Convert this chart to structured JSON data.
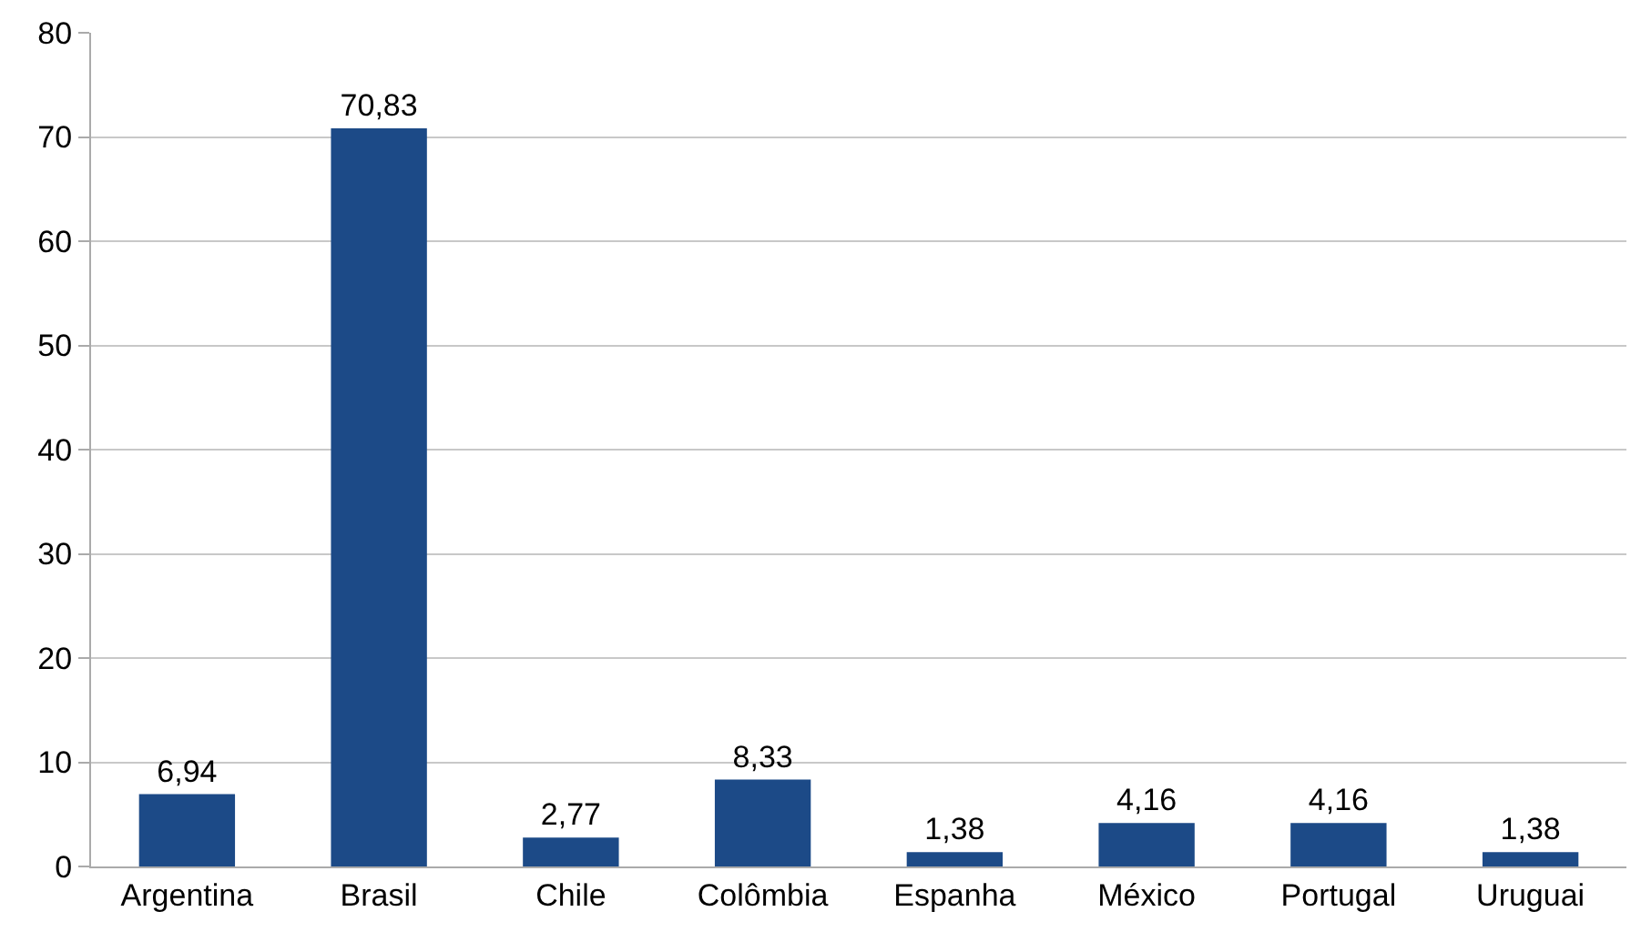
{
  "chart_data": {
    "type": "bar",
    "categories": [
      "Argentina",
      "Brasil",
      "Chile",
      "Colômbia",
      "Espanha",
      "México",
      "Portugal",
      "Uruguai"
    ],
    "values": [
      6.94,
      70.83,
      2.77,
      8.33,
      1.38,
      4.16,
      4.16,
      1.38
    ],
    "value_labels": [
      "6,94",
      "70,83",
      "2,77",
      "8,33",
      "1,38",
      "4,16",
      "4,16",
      "1,38"
    ],
    "color": "#1c4a87",
    "ylim": [
      0,
      80
    ],
    "yticks": [
      0,
      10,
      20,
      30,
      40,
      50,
      60,
      70,
      80
    ],
    "grid": "y",
    "legend": false
  }
}
